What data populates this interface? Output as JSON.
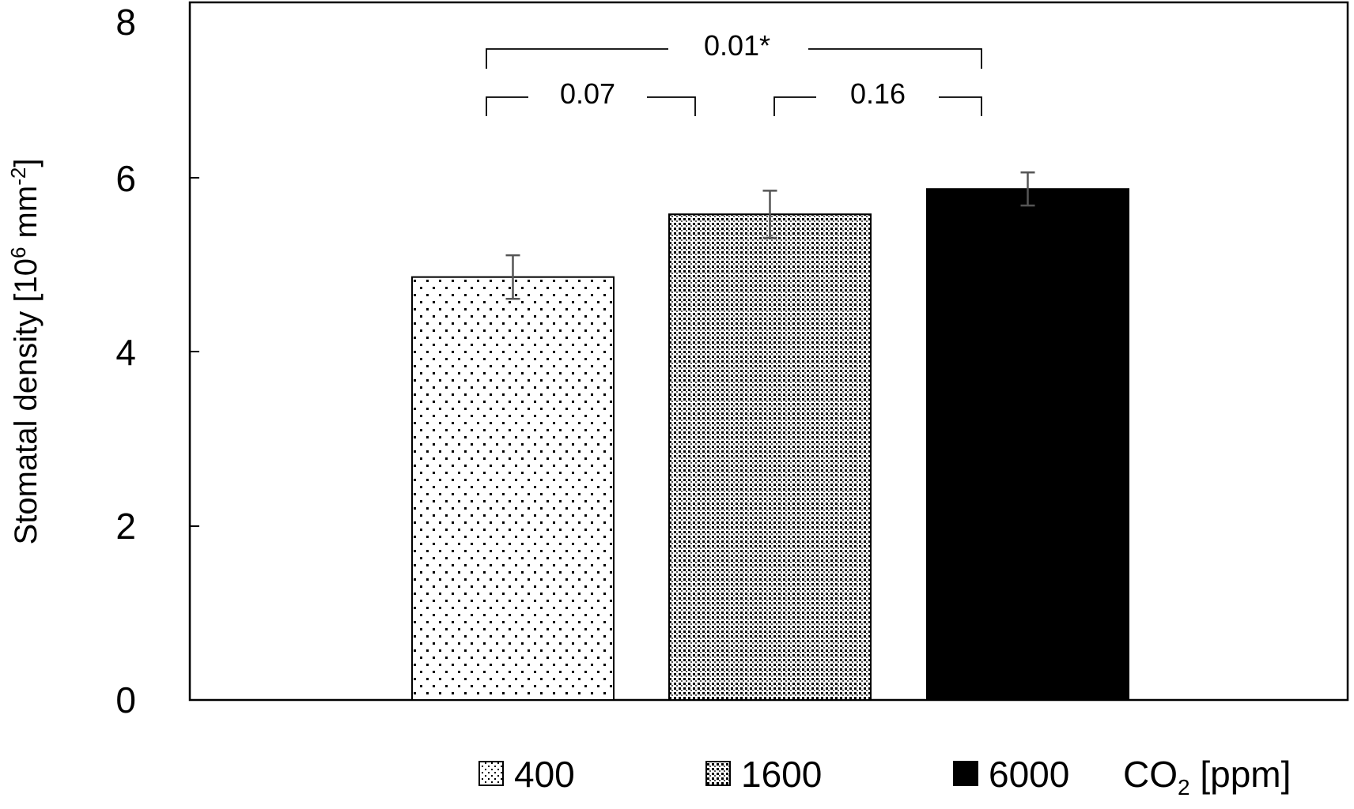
{
  "chart_data": {
    "type": "bar",
    "categories": [
      "400",
      "1600",
      "6000"
    ],
    "values": [
      4.85,
      5.57,
      5.86
    ],
    "error_bars": [
      0.25,
      0.27,
      0.19
    ],
    "ylim": [
      0,
      8
    ],
    "yticks": [
      "0",
      "2",
      "4",
      "6",
      "8"
    ],
    "ylabel": {
      "main": "Stomatal density [10",
      "sup1": "6",
      "mid": " mm",
      "sup2": "-2",
      "end": "]"
    },
    "xlabel": "",
    "grid": false,
    "patterns": [
      "sparse-dots",
      "dense-dots",
      "solid-black"
    ],
    "bar_fill_color": "#000000",
    "error_bar_color": "#555555",
    "significance": [
      {
        "from": 0,
        "to": 1,
        "label": "0.07"
      },
      {
        "from": 1,
        "to": 2,
        "label": "0.16"
      },
      {
        "from": 0,
        "to": 2,
        "label": "0.01*"
      }
    ],
    "legend": {
      "placement": "bottom",
      "items": [
        "400",
        "1600",
        "6000"
      ],
      "unit_main": "CO",
      "unit_sub": "2",
      "unit_end": " [ppm]"
    }
  }
}
